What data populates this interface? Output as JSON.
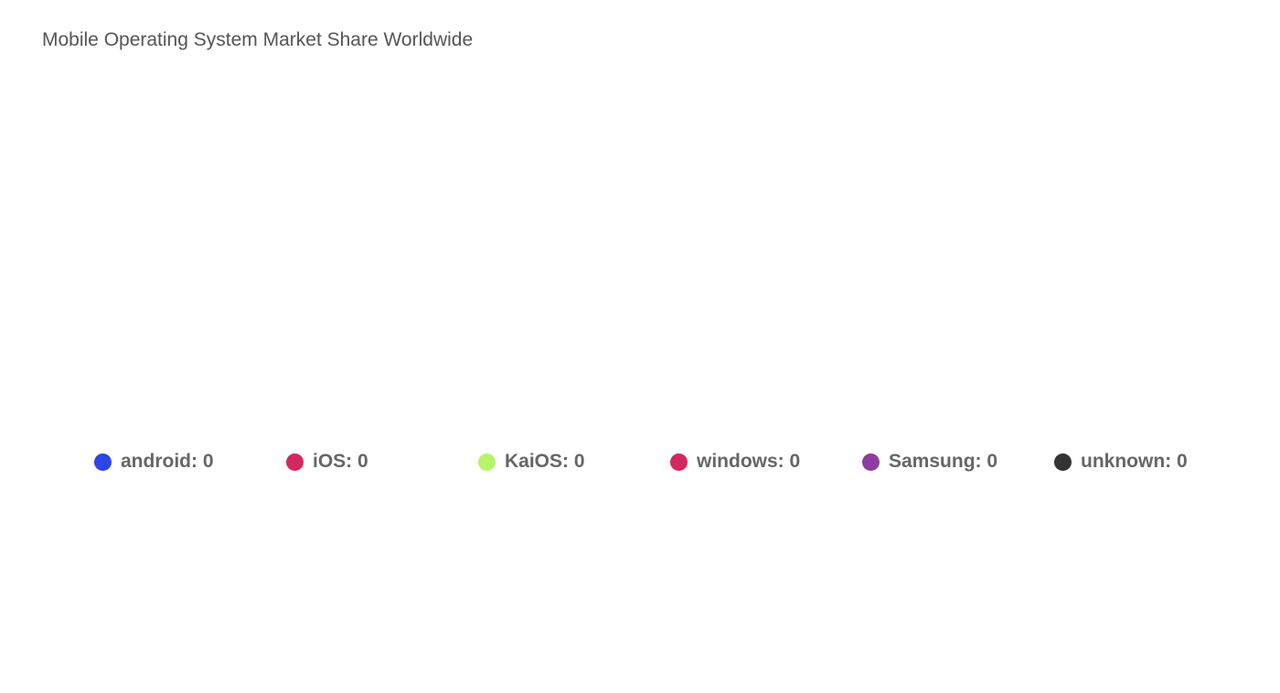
{
  "chart_data": {
    "type": "pie",
    "title": "Mobile Operating System Market Share Worldwide",
    "legend_position": "bottom",
    "series": [
      {
        "name": "android",
        "value": 0,
        "label": "android: 0",
        "color": "#2b45e8"
      },
      {
        "name": "iOS",
        "value": 0,
        "label": "iOS: 0",
        "color": "#d6285e"
      },
      {
        "name": "KaiOS",
        "value": 0,
        "label": "KaiOS: 0",
        "color": "#b7f46a"
      },
      {
        "name": "windows",
        "value": 0,
        "label": "windows: 0",
        "color": "#d6285e"
      },
      {
        "name": "Samsung",
        "value": 0,
        "label": "Samsung: 0",
        "color": "#8e3ca0"
      },
      {
        "name": "unknown",
        "value": 0,
        "label": "unknown: 0",
        "color": "#333333"
      }
    ]
  }
}
